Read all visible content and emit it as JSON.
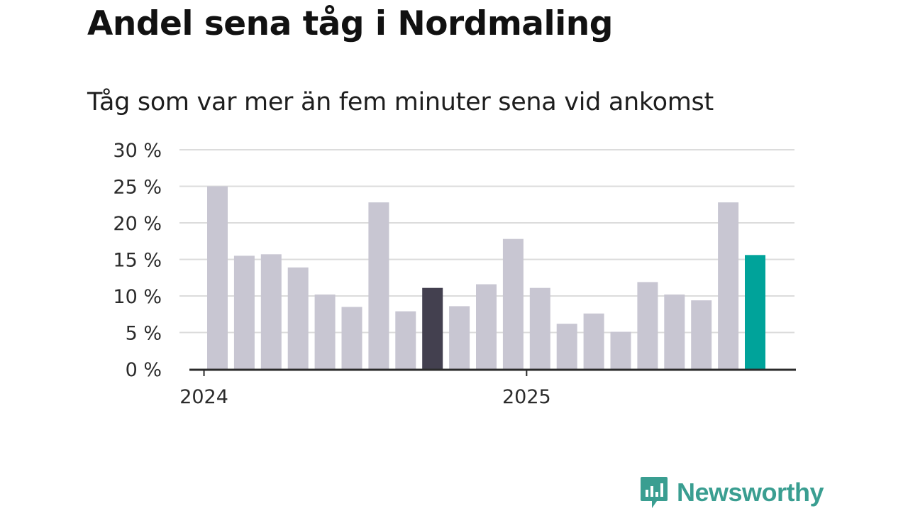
{
  "title": "Andel sena tåg i Nordmaling",
  "subtitle": "Tåg som var mer än fem minuter sena vid ankomst",
  "brand": {
    "name": "Newsworthy",
    "color": "#3a9e91",
    "icon": "newsworthy-logo-icon"
  },
  "colors": {
    "bar": "#c8c6d2",
    "highlight_dark": "#43404f",
    "highlight_latest": "#00a39a",
    "grid": "#dcdcdc",
    "axis": "#2b2b2b"
  },
  "chart_data": {
    "type": "bar",
    "title": "Andel sena tåg i Nordmaling",
    "subtitle": "Tåg som var mer än fem minuter sena vid ankomst",
    "ylabel": "",
    "xlabel": "",
    "ylim": [
      0,
      30
    ],
    "yticks": [
      0,
      5,
      10,
      15,
      20,
      25,
      30
    ],
    "ytick_labels": [
      "0 %",
      "5 %",
      "10 %",
      "15 %",
      "20 %",
      "25 %",
      "30 %"
    ],
    "xtick_labels": [
      {
        "label": "2024",
        "index": -0.5
      },
      {
        "label": "2025",
        "index": 11.5
      }
    ],
    "grid": true,
    "values": [
      25.0,
      15.5,
      15.7,
      13.9,
      10.2,
      8.5,
      22.8,
      7.9,
      11.1,
      8.6,
      11.6,
      17.8,
      11.1,
      6.2,
      7.6,
      5.1,
      11.9,
      10.2,
      9.4,
      22.8,
      15.6
    ],
    "highlights": {
      "8": "dark",
      "20": "latest"
    }
  }
}
